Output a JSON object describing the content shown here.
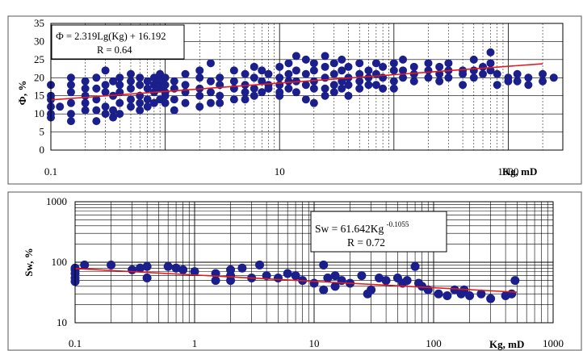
{
  "chart_data": [
    {
      "type": "scatter",
      "x_scale": "log",
      "y_scale": "linear",
      "xlim": [
        0.1,
        3000
      ],
      "ylim": [
        0,
        35
      ],
      "ylabel": "Ф, %",
      "xlabel": "Kg, mD",
      "x_tick_labels": [
        "0.1",
        "10",
        "1000"
      ],
      "y_tick_labels": [
        "0",
        "5",
        "10",
        "15",
        "20",
        "25",
        "30",
        "35"
      ],
      "grid": true,
      "annotation": {
        "equation": "Ф = 2.319Lg(Kg) + 16.192",
        "r_text": "R = 0.64"
      },
      "series": [
        {
          "marker_color": "#1a1f8c",
          "points": [
            [
              0.1,
              18
            ],
            [
              0.1,
              15
            ],
            [
              0.1,
              12
            ],
            [
              0.1,
              10
            ],
            [
              0.1,
              9
            ],
            [
              0.1,
              14
            ],
            [
              0.12,
              12
            ],
            [
              0.15,
              20
            ],
            [
              0.15,
              18
            ],
            [
              0.15,
              16
            ],
            [
              0.15,
              13
            ],
            [
              0.15,
              10
            ],
            [
              0.15,
              8
            ],
            [
              0.2,
              19
            ],
            [
              0.2,
              17
            ],
            [
              0.2,
              15
            ],
            [
              0.2,
              13
            ],
            [
              0.2,
              11
            ],
            [
              0.25,
              20
            ],
            [
              0.25,
              17
            ],
            [
              0.25,
              14
            ],
            [
              0.25,
              11
            ],
            [
              0.25,
              8
            ],
            [
              0.3,
              22
            ],
            [
              0.3,
              18
            ],
            [
              0.3,
              16
            ],
            [
              0.3,
              12
            ],
            [
              0.3,
              10
            ],
            [
              0.35,
              19
            ],
            [
              0.35,
              15
            ],
            [
              0.35,
              11
            ],
            [
              0.35,
              9
            ],
            [
              0.4,
              20
            ],
            [
              0.4,
              18
            ],
            [
              0.4,
              16
            ],
            [
              0.4,
              13
            ],
            [
              0.4,
              10
            ],
            [
              0.5,
              21
            ],
            [
              0.5,
              19
            ],
            [
              0.5,
              17
            ],
            [
              0.5,
              14
            ],
            [
              0.5,
              12
            ],
            [
              0.6,
              20
            ],
            [
              0.6,
              18
            ],
            [
              0.6,
              15
            ],
            [
              0.6,
              13
            ],
            [
              0.6,
              11
            ],
            [
              0.7,
              19
            ],
            [
              0.7,
              17
            ],
            [
              0.7,
              14
            ],
            [
              0.7,
              12
            ],
            [
              0.8,
              20
            ],
            [
              0.8,
              18
            ],
            [
              0.8,
              16
            ],
            [
              0.8,
              13
            ],
            [
              0.9,
              21
            ],
            [
              0.9,
              19
            ],
            [
              0.9,
              17
            ],
            [
              0.9,
              14
            ],
            [
              1,
              20
            ],
            [
              1,
              18
            ],
            [
              1,
              16
            ],
            [
              1,
              15
            ],
            [
              1,
              13
            ],
            [
              1.2,
              19
            ],
            [
              1.2,
              17
            ],
            [
              1.2,
              14
            ],
            [
              1.2,
              11
            ],
            [
              1.5,
              21
            ],
            [
              1.5,
              18
            ],
            [
              1.5,
              16
            ],
            [
              1.5,
              13
            ],
            [
              2,
              22
            ],
            [
              2,
              20
            ],
            [
              2,
              17
            ],
            [
              2,
              15
            ],
            [
              2,
              12
            ],
            [
              2.5,
              24
            ],
            [
              2.5,
              19
            ],
            [
              2.5,
              16
            ],
            [
              2.5,
              13
            ],
            [
              3,
              20
            ],
            [
              3,
              18
            ],
            [
              3,
              15
            ],
            [
              3,
              13
            ],
            [
              4,
              22
            ],
            [
              4,
              19
            ],
            [
              4,
              17
            ],
            [
              4,
              14
            ],
            [
              5,
              21
            ],
            [
              5,
              18
            ],
            [
              5,
              16
            ],
            [
              5,
              14
            ],
            [
              6,
              23
            ],
            [
              6,
              20
            ],
            [
              6,
              17
            ],
            [
              6,
              15
            ],
            [
              7,
              22
            ],
            [
              7,
              19
            ],
            [
              7,
              16
            ],
            [
              8,
              21
            ],
            [
              8,
              18
            ],
            [
              8,
              17
            ],
            [
              10,
              23
            ],
            [
              10,
              20
            ],
            [
              10,
              18
            ],
            [
              10,
              16
            ],
            [
              10,
              15
            ],
            [
              12,
              24
            ],
            [
              12,
              21
            ],
            [
              12,
              19
            ],
            [
              12,
              17
            ],
            [
              14,
              26
            ],
            [
              14,
              22
            ],
            [
              14,
              19
            ],
            [
              14,
              16
            ],
            [
              17,
              25
            ],
            [
              17,
              21
            ],
            [
              17,
              18
            ],
            [
              17,
              14
            ],
            [
              20,
              24
            ],
            [
              20,
              22
            ],
            [
              20,
              19
            ],
            [
              20,
              17
            ],
            [
              20,
              13
            ],
            [
              25,
              26
            ],
            [
              25,
              23
            ],
            [
              25,
              20
            ],
            [
              25,
              17
            ],
            [
              25,
              15
            ],
            [
              30,
              24
            ],
            [
              30,
              21
            ],
            [
              30,
              18
            ],
            [
              30,
              16
            ],
            [
              35,
              25
            ],
            [
              35,
              22
            ],
            [
              35,
              19
            ],
            [
              35,
              17
            ],
            [
              40,
              23
            ],
            [
              40,
              20
            ],
            [
              40,
              18
            ],
            [
              40,
              15
            ],
            [
              50,
              24
            ],
            [
              50,
              21
            ],
            [
              50,
              19
            ],
            [
              50,
              17
            ],
            [
              60,
              22
            ],
            [
              60,
              20
            ],
            [
              60,
              18
            ],
            [
              70,
              24
            ],
            [
              70,
              21
            ],
            [
              70,
              18
            ],
            [
              80,
              23
            ],
            [
              80,
              20
            ],
            [
              80,
              17
            ],
            [
              100,
              24
            ],
            [
              100,
              22
            ],
            [
              100,
              19
            ],
            [
              100,
              17
            ],
            [
              120,
              25
            ],
            [
              120,
              22
            ],
            [
              120,
              20
            ],
            [
              150,
              23
            ],
            [
              150,
              21
            ],
            [
              150,
              19
            ],
            [
              200,
              24
            ],
            [
              200,
              22
            ],
            [
              200,
              20
            ],
            [
              250,
              23
            ],
            [
              250,
              21
            ],
            [
              250,
              19
            ],
            [
              300,
              24
            ],
            [
              300,
              22
            ],
            [
              300,
              20
            ],
            [
              400,
              22
            ],
            [
              400,
              21
            ],
            [
              400,
              18
            ],
            [
              500,
              25
            ],
            [
              500,
              22
            ],
            [
              500,
              20
            ],
            [
              600,
              23
            ],
            [
              600,
              21
            ],
            [
              700,
              27
            ],
            [
              700,
              24
            ],
            [
              700,
              22
            ],
            [
              800,
              21
            ],
            [
              800,
              18
            ],
            [
              1000,
              20
            ],
            [
              1000,
              19
            ],
            [
              1200,
              21
            ],
            [
              1200,
              19
            ],
            [
              1500,
              20
            ],
            [
              1500,
              18
            ],
            [
              2000,
              21
            ],
            [
              2000,
              19
            ],
            [
              2500,
              20
            ]
          ]
        }
      ],
      "fit_line": {
        "x": [
          0.1,
          2000
        ],
        "equation_coef": [
          2.319,
          16.192
        ],
        "color": "#e31a1c"
      }
    },
    {
      "type": "scatter",
      "x_scale": "log",
      "y_scale": "log",
      "xlim": [
        0.1,
        1000
      ],
      "ylim": [
        10,
        1000
      ],
      "ylabel": "Sw, %",
      "xlabel": "Kg, mD",
      "x_tick_labels": [
        "0.1",
        "1",
        "10",
        "100",
        "1000"
      ],
      "y_tick_labels": [
        "10",
        "100",
        "1000"
      ],
      "grid": true,
      "annotation": {
        "equation": "Sw = 61.642Kg",
        "exponent": "-0.1055",
        "r_text": "R = 0.72"
      },
      "series": [
        {
          "marker_color": "#1a1f8c",
          "points": [
            [
              0.1,
              80
            ],
            [
              0.1,
              75
            ],
            [
              0.1,
              65
            ],
            [
              0.1,
              55
            ],
            [
              0.1,
              48
            ],
            [
              0.12,
              90
            ],
            [
              0.2,
              90
            ],
            [
              0.3,
              75
            ],
            [
              0.35,
              80
            ],
            [
              0.4,
              85
            ],
            [
              0.4,
              55
            ],
            [
              0.6,
              85
            ],
            [
              0.7,
              80
            ],
            [
              0.8,
              75
            ],
            [
              1,
              70
            ],
            [
              1.5,
              65
            ],
            [
              1.5,
              50
            ],
            [
              2,
              75
            ],
            [
              2,
              60
            ],
            [
              2,
              50
            ],
            [
              2.5,
              80
            ],
            [
              3,
              55
            ],
            [
              3.5,
              90
            ],
            [
              4,
              60
            ],
            [
              5,
              55
            ],
            [
              6,
              65
            ],
            [
              7,
              60
            ],
            [
              8,
              50
            ],
            [
              10,
              45
            ],
            [
              12,
              90
            ],
            [
              12,
              35
            ],
            [
              13,
              55
            ],
            [
              15,
              60
            ],
            [
              15,
              40
            ],
            [
              17,
              50
            ],
            [
              20,
              45
            ],
            [
              25,
              60
            ],
            [
              28,
              30
            ],
            [
              30,
              35
            ],
            [
              35,
              55
            ],
            [
              40,
              50
            ],
            [
              50,
              55
            ],
            [
              55,
              45
            ],
            [
              60,
              50
            ],
            [
              70,
              85
            ],
            [
              75,
              45
            ],
            [
              80,
              40
            ],
            [
              90,
              35
            ],
            [
              110,
              30
            ],
            [
              130,
              28
            ],
            [
              150,
              35
            ],
            [
              170,
              30
            ],
            [
              180,
              35
            ],
            [
              200,
              28
            ],
            [
              250,
              30
            ],
            [
              300,
              25
            ],
            [
              400,
              28
            ],
            [
              450,
              30
            ],
            [
              480,
              50
            ]
          ]
        }
      ],
      "fit_line": {
        "x": [
          0.1,
          500
        ],
        "coef": 61.642,
        "exp": -0.1055,
        "color": "#e31a1c"
      }
    }
  ]
}
